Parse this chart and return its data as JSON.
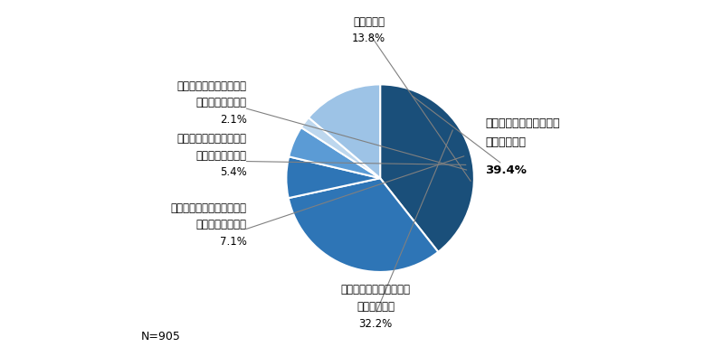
{
  "slices": [
    {
      "label_line1": "取り組んでおり、全体で",
      "label_line2": "定着している",
      "pct_display": "39.4%",
      "pct": 39.4,
      "color": "#1a4f7a"
    },
    {
      "label_line1": "取り組んでおり、一部で",
      "label_line2": "定着している",
      "pct_display": "32.2%",
      "pct": 32.2,
      "color": "#2e75b6"
    },
    {
      "label_line1": "取り組んでいるが、まった",
      "label_line2": "く定着していない",
      "pct_display": "7.1%",
      "pct": 7.1,
      "color": "#2e75b6"
    },
    {
      "label_line1": "必要性は感じているが、",
      "label_line2": "取り組んでいない",
      "pct_display": "5.4%",
      "pct": 5.4,
      "color": "#5b9bd5"
    },
    {
      "label_line1": "取り組んでおらず、必要",
      "label_line2": "性も感じていない",
      "pct_display": "2.1%",
      "pct": 2.1,
      "color": "#bdd7ee"
    },
    {
      "label_line1": "わからない",
      "label_line2": "",
      "pct_display": "13.8%",
      "pct": 13.8,
      "color": "#9dc3e6"
    }
  ],
  "note": "N=905",
  "bg_color": "#ffffff"
}
